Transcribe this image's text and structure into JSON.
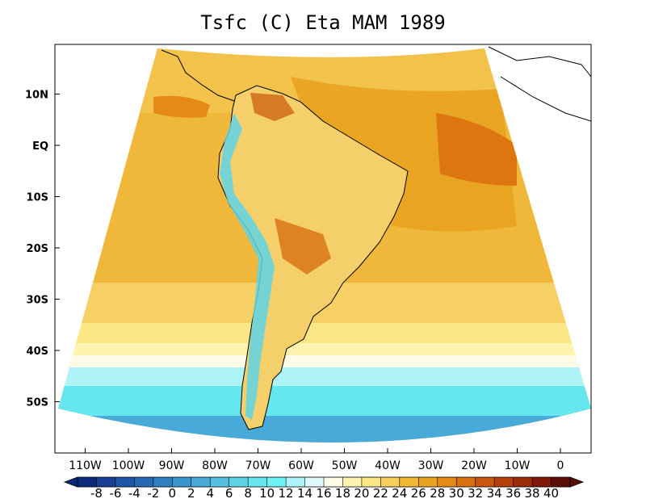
{
  "title": "Tsfc (C) Eta MAM 1989",
  "map": {
    "lat_ticks": [
      {
        "label": "10N",
        "lat": 10
      },
      {
        "label": "EQ",
        "lat": 0
      },
      {
        "label": "10S",
        "lat": -10
      },
      {
        "label": "20S",
        "lat": -20
      },
      {
        "label": "30S",
        "lat": -30
      },
      {
        "label": "40S",
        "lat": -40
      },
      {
        "label": "50S",
        "lat": -50
      }
    ],
    "lon_ticks": [
      {
        "label": "110W",
        "lon": -110
      },
      {
        "label": "100W",
        "lon": -100
      },
      {
        "label": "90W",
        "lon": -90
      },
      {
        "label": "80W",
        "lon": -80
      },
      {
        "label": "70W",
        "lon": -70
      },
      {
        "label": "60W",
        "lon": -60
      },
      {
        "label": "50W",
        "lon": -50
      },
      {
        "label": "40W",
        "lon": -40
      },
      {
        "label": "30W",
        "lon": -30
      },
      {
        "label": "20W",
        "lon": -20
      },
      {
        "label": "10W",
        "lon": -10
      },
      {
        "label": "0",
        "lon": 0
      }
    ]
  },
  "colorbar": {
    "labels": [
      "-8",
      "-6",
      "-4",
      "-2",
      "0",
      "2",
      "4",
      "6",
      "8",
      "10",
      "12",
      "14",
      "16",
      "18",
      "20",
      "22",
      "24",
      "26",
      "28",
      "30",
      "32",
      "34",
      "36",
      "38",
      "40"
    ],
    "colors": [
      "#0b2a7a",
      "#163e92",
      "#1f55a8",
      "#2769b5",
      "#2f7fc2",
      "#3a94ce",
      "#48aad8",
      "#55c0df",
      "#5fd4e6",
      "#66e6ee",
      "#6ff4f6",
      "#aef3f7",
      "#dff7fb",
      "#fffbe6",
      "#fff3b0",
      "#fde686",
      "#f7cf5c",
      "#f1b834",
      "#eba31f",
      "#e38b16",
      "#d86f10",
      "#c9560c",
      "#b43f0a",
      "#9b2a08",
      "#7e1808",
      "#5a0c08"
    ]
  }
}
